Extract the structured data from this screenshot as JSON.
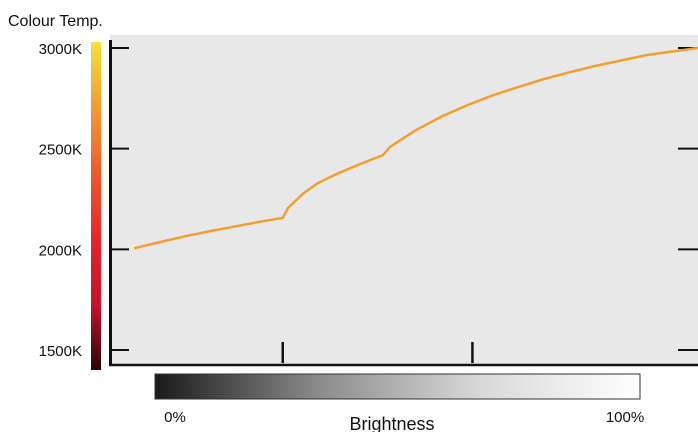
{
  "chart_data": {
    "type": "line",
    "ylabel": "Colour Temp.",
    "xlabel": "Brightness",
    "x_tick_labels": [
      {
        "x": 0,
        "label": "0%"
      },
      {
        "x": 100,
        "label": "100%"
      }
    ],
    "xlim": [
      -4.7,
      110
    ],
    "ylim": [
      1500,
      3000
    ],
    "yticks": [
      {
        "value": 3000,
        "label": "3000K"
      },
      {
        "value": 2500,
        "label": "2500K"
      },
      {
        "value": 2000,
        "label": "2000K"
      },
      {
        "value": 1500,
        "label": "1500K"
      }
    ],
    "x_minor_ticks": [
      29,
      66
    ],
    "grid": false,
    "series": [
      {
        "color": "#f0a030",
        "points": [
          [
            0,
            2005
          ],
          [
            5,
            2036
          ],
          [
            10,
            2065
          ],
          [
            15,
            2091
          ],
          [
            20,
            2115
          ],
          [
            25,
            2139
          ],
          [
            29,
            2156
          ],
          [
            30,
            2205
          ],
          [
            33,
            2278
          ],
          [
            36,
            2331
          ],
          [
            40,
            2380
          ],
          [
            45,
            2433
          ],
          [
            48.5,
            2467
          ],
          [
            50,
            2510
          ],
          [
            55,
            2592
          ],
          [
            60,
            2660
          ],
          [
            65,
            2716
          ],
          [
            70,
            2765
          ],
          [
            75,
            2807
          ],
          [
            80,
            2846
          ],
          [
            85,
            2880
          ],
          [
            90,
            2911
          ],
          [
            95,
            2938
          ],
          [
            100,
            2965
          ],
          [
            110,
            3000
          ]
        ]
      }
    ],
    "y_colorbar_stops": [
      "#2a0508",
      "#c8102e",
      "#e8242a",
      "#f05a28",
      "#f59a32",
      "#f5e23a"
    ],
    "x_colorbar_stops": [
      "#1a1a1a",
      "#8a8a8a",
      "#d8d8d8",
      "#ffffff"
    ]
  }
}
